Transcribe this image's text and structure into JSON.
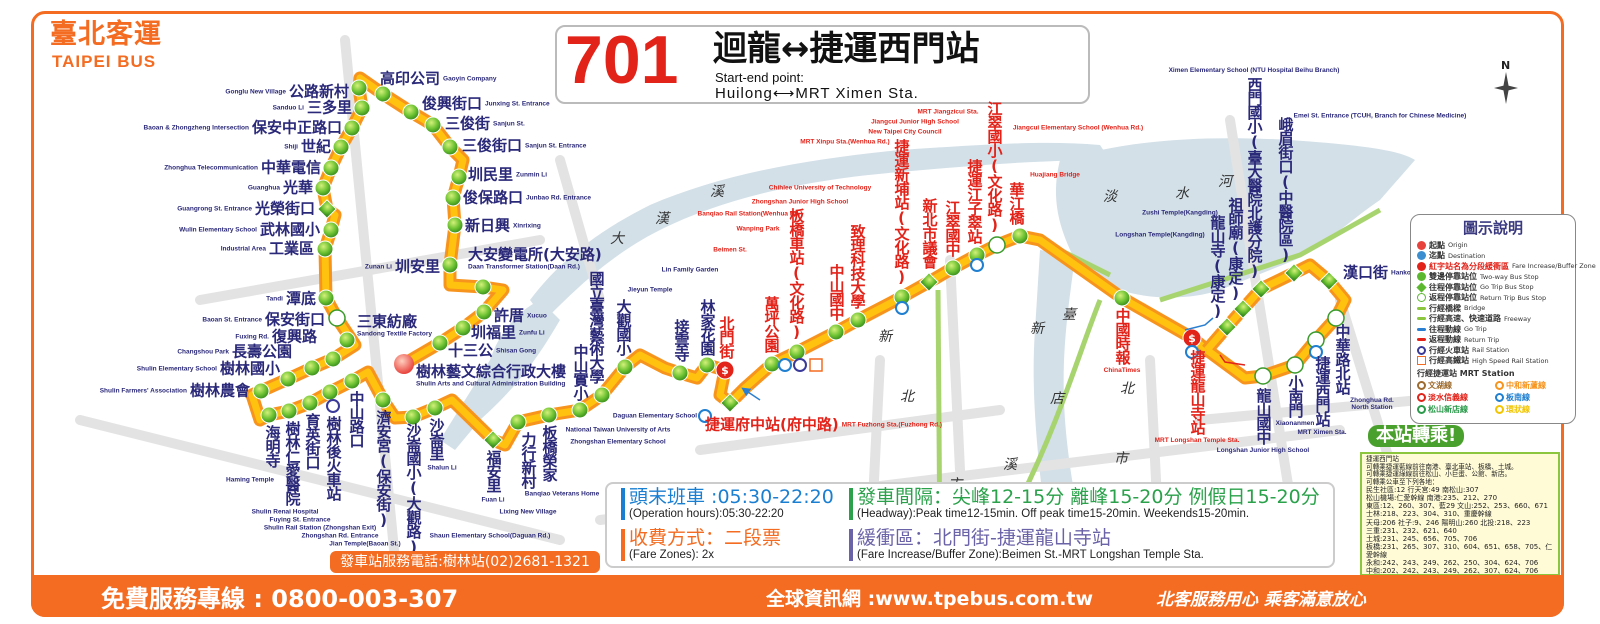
{
  "logo": {
    "zh": "臺北客運",
    "en": "TAIPEI BUS"
  },
  "title": {
    "route_number": "701",
    "route_name": "迴龍↔捷運西門站",
    "start_end_label": "Start-end point:",
    "start_end": "Huilong⟷MRT Ximen Sta."
  },
  "colors": {
    "brand": "#f36c21",
    "route_outer": "#f7941d",
    "route_inner": "#ffc20e",
    "stop": "#5cb82e",
    "buffer_text": "#e2231a",
    "stop_text": "#2a2878"
  },
  "stops": [
    {
      "zh": "樹林藝文綜合行政大樓",
      "en": "Shulin Arts and Cultural Administration Building",
      "type": "origin"
    },
    {
      "zh": "十三公",
      "en": "Shisan Gong",
      "type": "two-way"
    },
    {
      "zh": "圳福里",
      "en": "Zunfu Li",
      "type": "two-way"
    },
    {
      "zh": "許厝",
      "en": "Xucuo",
      "type": "two-way"
    },
    {
      "zh": "大安變電所(大安路)",
      "en": "Daan Transformer Station(Daan Rd.)",
      "type": "two-way"
    },
    {
      "zh": "圳安里",
      "en": "Zunan Li",
      "type": "two-way"
    },
    {
      "zh": "新日興",
      "en": "Xinrixing",
      "type": "two-way"
    },
    {
      "zh": "俊保路口",
      "en": "Junbao Rd. Entrance",
      "type": "two-way"
    },
    {
      "zh": "圳民里",
      "en": "Zunmin Li",
      "type": "two-way"
    },
    {
      "zh": "三俊街口",
      "en": "Sanjun St. Entrance",
      "type": "two-way"
    },
    {
      "zh": "三俊街",
      "en": "Sanjun St.",
      "type": "two-way"
    },
    {
      "zh": "俊興街口",
      "en": "Junxing St. Entrance",
      "type": "two-way"
    },
    {
      "zh": "高印公司",
      "en": "Gaoyin Company",
      "type": "two-way"
    },
    {
      "zh": "公路新村",
      "en": "Gonglu New Village",
      "type": "two-way"
    },
    {
      "zh": "三多里",
      "en": "Sanduo Li",
      "type": "two-way"
    },
    {
      "zh": "保安中正路口",
      "en": "Baoan & Zhongzheng Intersection",
      "type": "two-way"
    },
    {
      "zh": "世紀",
      "en": "Shiji",
      "type": "two-way"
    },
    {
      "zh": "中華電信",
      "en": "Zhonghua Telecommunication",
      "type": "two-way"
    },
    {
      "zh": "光華",
      "en": "Guanghua",
      "type": "two-way"
    },
    {
      "zh": "光榮街口",
      "en": "Guangrong St. Entrance",
      "type": "go"
    },
    {
      "zh": "武林國小",
      "en": "Wulin Elementary School",
      "type": "two-way"
    },
    {
      "zh": "工業區",
      "en": "Industrial Area",
      "type": "two-way"
    },
    {
      "zh": "潭底",
      "en": "Tandi",
      "type": "two-way"
    },
    {
      "zh": "保安街口",
      "en": "Baoan St. Entrance",
      "type": "return"
    },
    {
      "zh": "三東紡廠",
      "en": "Sandong Textile Factory",
      "type": "two-way"
    },
    {
      "zh": "復興路",
      "en": "Fuxing Rd.",
      "type": "two-way"
    },
    {
      "zh": "長壽公園",
      "en": "Changshou Park",
      "type": "two-way"
    },
    {
      "zh": "樹林國小",
      "en": "Shulin Elementary School",
      "type": "two-way"
    },
    {
      "zh": "樹林農會",
      "en": "Shulin Farmers' Association",
      "type": "two-way"
    },
    {
      "zh": "海明寺",
      "en": "Haming Temple",
      "type": "two-way"
    },
    {
      "zh": "樹林仁愛醫院",
      "en": "Shulin Renai Hospital",
      "type": "two-way"
    },
    {
      "zh": "育英街口",
      "en": "Fuying St. Entrance",
      "type": "two-way"
    },
    {
      "zh": "樹林後火車站",
      "en": "Shulin Rail Station (Zhongshan Exit)",
      "type": "two-way"
    },
    {
      "zh": "中山路口",
      "en": "Zhongshan Rd. Entrance",
      "type": "two-way"
    },
    {
      "zh": "濟安宮(保安街)",
      "en": "Jian Temple(Baoan St.)",
      "type": "two-way"
    },
    {
      "zh": "沙崙國小(大觀路)",
      "en": "Shaun Elementary School(Daguan Rd.)",
      "type": "two-way"
    },
    {
      "zh": "沙崙里",
      "en": "Shalun Li",
      "type": "two-way"
    },
    {
      "zh": "福安里",
      "en": "Fuan Li",
      "type": "go"
    },
    {
      "zh": "力行新村",
      "en": "Lixing New Village",
      "type": "two-way"
    },
    {
      "zh": "板橋榮家",
      "en": "Banqiao Veterans Home",
      "type": "two-way"
    },
    {
      "zh": "中山實小",
      "en": "Zhongshan Elementary School",
      "type": "two-way"
    },
    {
      "zh": "國立臺灣藝術大學",
      "en": "National Taiwan University of Arts",
      "type": "two-way"
    },
    {
      "zh": "大觀國小",
      "en": "Daguan Elementary School",
      "type": "two-way"
    },
    {
      "zh": "接雲寺",
      "en": "Jieyun Temple",
      "type": "two-way"
    },
    {
      "zh": "林家花園",
      "en": "Lin Family Garden",
      "type": "two-way"
    },
    {
      "zh": "北門街",
      "en": "Beimen St.",
      "type": "buffer",
      "red": true
    },
    {
      "zh": "捷運府中站(府中路)",
      "en": "MRT Fuzhong Sta.(Fuzhong Rd.)",
      "type": "go",
      "red": true
    },
    {
      "zh": "萬坪公園",
      "en": "Wanping Park",
      "type": "two-way",
      "red": true
    },
    {
      "zh": "板橋車站(文化路)",
      "en": "Banqiao Rail Station(Wenhua Rd.)",
      "type": "two-way",
      "red": true
    },
    {
      "zh": "中山國中",
      "en": "Zhongshan Junior High School",
      "type": "two-way",
      "red": true
    },
    {
      "zh": "致理科技大學",
      "en": "Chihlee University of Technology",
      "type": "two-way",
      "red": true
    },
    {
      "zh": "捷運新埔站(文化路)",
      "en": "MRT Xinpu Sta.(Wenhua Rd.)",
      "type": "two-way",
      "red": true
    },
    {
      "zh": "新北市議會",
      "en": "New Taipei City Council",
      "type": "go",
      "red": true
    },
    {
      "zh": "江翠國中",
      "en": "Jiangcui Junior High School",
      "type": "two-way",
      "red": true
    },
    {
      "zh": "捷運江子翠站",
      "en": "MRT Jiangzicui Sta.",
      "type": "two-way",
      "red": true
    },
    {
      "zh": "江翠國小(文化路)",
      "en": "Jiangcui Elementary School (Wenhua Rd.)",
      "type": "return",
      "red": true
    },
    {
      "zh": "華江橋",
      "en": "Huajiang Bridge",
      "type": "two-way",
      "red": true
    },
    {
      "zh": "中國時報",
      "en": "ChinaTimes",
      "type": "two-way",
      "red": true
    },
    {
      "zh": "捷運龍山寺站",
      "en": "MRT Longshan Temple Sta.",
      "type": "buffer",
      "red": true
    },
    {
      "zh": "龍山寺(康定)",
      "en": "Longshan Temple(Kangding)",
      "type": "go"
    },
    {
      "zh": "祖師廟(康定)",
      "en": "Zushi Temple(Kangding)",
      "type": "go"
    },
    {
      "zh": "西門國小(臺大醫院北護分院)",
      "en": "Ximen Elementary School (NTU Hospital Beihu Branch)",
      "type": "go"
    },
    {
      "zh": "峨眉街口(中醫院區)",
      "en": "Emei St. Entrance (TCUH, Branch for Chinese Medicine)",
      "type": "go"
    },
    {
      "zh": "漢口街",
      "en": "Hankou St.",
      "type": "go"
    },
    {
      "zh": "中華路北站",
      "en": "Zhonghua Rd. North Station",
      "type": "return"
    },
    {
      "zh": "捷運西門站",
      "en": "MRT Ximen Sta.",
      "type": "return"
    },
    {
      "zh": "小南門",
      "en": "Xiaonanmen",
      "type": "return"
    },
    {
      "zh": "龍山國中",
      "en": "Longshan Junior High School",
      "type": "return"
    }
  ],
  "districts": [
    "大",
    "漢",
    "溪",
    "新",
    "北",
    "市",
    "臺",
    "北",
    "市",
    "新",
    "店",
    "溪",
    "淡",
    "水",
    "河"
  ],
  "info": {
    "hours": "頭末班車 :05:30-22:20",
    "hours_en": "(Operation hours):05:30-22:20",
    "fare": "收費方式：二段票",
    "fare_en": "(Fare Zones): 2x",
    "headway": "發車間隔：尖峰12-15分 離峰15-20分 例假日15-20分",
    "headway_en": "(Headway):Peak time12-15min. Off peak time15-20min. Weekends15-20min.",
    "buffer": "緩衝區：北門街-捷運龍山寺站",
    "buffer_en": "(Fare Increase/Buffer Zone):Beimen St.-MRT Longshan Temple Sta."
  },
  "phone": "發車站服務電話:樹林站(02)2681-1321",
  "legend": {
    "title": "圖示說明",
    "items": [
      {
        "zh": "起點",
        "en": "Origin",
        "icon": "origin-dot",
        "color": "#e8423c"
      },
      {
        "zh": "迄點",
        "en": "Destination",
        "icon": "destination-dot",
        "color": "#3b8fd1"
      },
      {
        "zh": "紅字站名為分段緩衝區",
        "en": "Fare Increase/Buffer Zone",
        "icon": "buffer-dollar",
        "color": "#e2231a"
      },
      {
        "zh": "雙邊停靠站位",
        "en": "Two-way Bus Stop",
        "icon": "two-way-dot",
        "color": "#5cb82e"
      },
      {
        "zh": "往程停靠站位",
        "en": "Go Trip Bus Stop",
        "icon": "go-diamond",
        "color": "#5cb82e"
      },
      {
        "zh": "返程停靠站位",
        "en": "Return Trip Bus Stop",
        "icon": "return-ring",
        "color": "#5cb82e"
      },
      {
        "zh": "行經橋樑",
        "en": "Bridge",
        "icon": "bridge",
        "color": "#8cc63f"
      },
      {
        "zh": "行經高速、快速道路",
        "en": "Freeway",
        "icon": "freeway",
        "color": "#8cc63f"
      },
      {
        "zh": "往程動線",
        "en": "Go Trip",
        "icon": "go-arrow",
        "color": "#2a7fd1"
      },
      {
        "zh": "返程動線",
        "en": "Return Trip",
        "icon": "return-arrow",
        "color": "#e2231a"
      },
      {
        "zh": "行經火車站",
        "en": "Rail Station",
        "icon": "rail",
        "color": "#3a3a9a"
      },
      {
        "zh": "行經高鐵站",
        "en": "High Speed Rail Station",
        "icon": "hsr",
        "color": "#f36c21"
      }
    ],
    "mrt_title": "行經捷運站 MRT Station",
    "mrt_lines": [
      {
        "name": "文湖線",
        "color": "#9e6b2e"
      },
      {
        "name": "中和新蘆線",
        "color": "#f7941d"
      },
      {
        "name": "淡水信義線",
        "color": "#e2231a"
      },
      {
        "name": "板南線",
        "color": "#1f7fd1"
      },
      {
        "name": "松山新店線",
        "color": "#2a9a4a"
      },
      {
        "name": "環狀線",
        "color": "#f2c500"
      }
    ]
  },
  "transfer": {
    "title": "本站轉乘!",
    "lines": [
      "捷運西門站",
      "可轉乘捷運藍線前往南港、臺北車站、板橋、土城。",
      "可轉乘捷運綠線前往松山、小巨蛋、公館、新店。",
      "可轉乘公車至下列各地：",
      "民生社區:12  行天宮:49  南松山:307",
      "松山機場:仁愛幹線  南港:235、212、270",
      "東區:12、260、307、藍29  文山:252、253、660、671",
      "士林:218、223、304、310、重慶幹線",
      "天母:206  社子:9、246  陽明山:260  北投:218、223",
      "三重:231、232、621、640",
      "土城:231、245、656、705、706",
      "板橋:231、265、307、310、604、651、658、705、仁愛幹線",
      "永和:242、243、249、262、250、304、624、706",
      "中和:202、242、243、249、262、307、624、706",
      "迴龍:701  三峽:705、706  瑞芳、九份、金瓜石:965"
    ]
  },
  "compass": "N",
  "footer": {
    "hotline": "免費服務專線 : 0800-003-307",
    "website": "全球資訊網 :www.tpebus.com.tw",
    "slogan": "北客服務用心 乘客滿意放心"
  }
}
